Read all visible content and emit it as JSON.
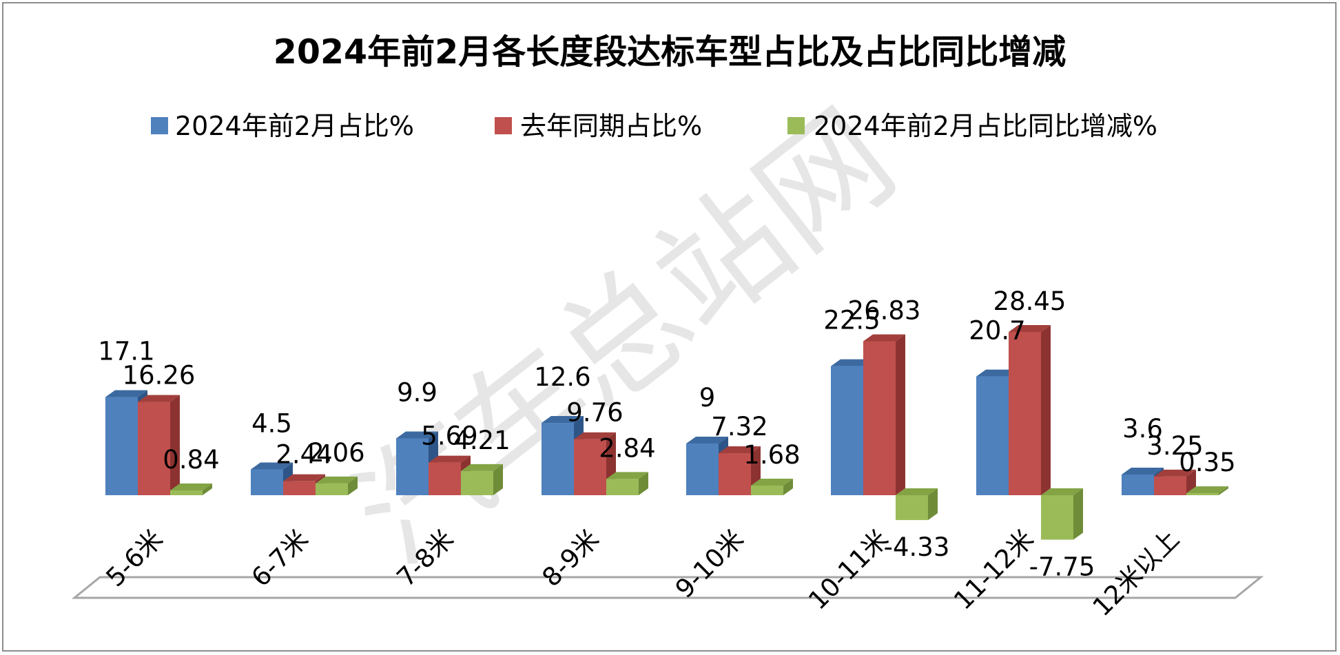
{
  "chart_data": {
    "type": "bar",
    "title": "2024年前2月各长度段达标车型占比及占比同比增减",
    "categories": [
      "5-6米",
      "6-7米",
      "7-8米",
      "8-9米",
      "9-10米",
      "10-11米",
      "11-12米",
      "12米以上"
    ],
    "series": [
      {
        "name": "2024年前2月占比%",
        "values": [
          17.1,
          4.5,
          9.9,
          12.6,
          9,
          22.5,
          20.7,
          3.6
        ]
      },
      {
        "name": "去年同期占比%",
        "values": [
          16.26,
          2.44,
          5.69,
          9.76,
          7.32,
          26.83,
          28.45,
          3.25
        ]
      },
      {
        "name": "2024年前2月占比同比增减%",
        "values": [
          0.84,
          2.06,
          4.21,
          2.84,
          1.68,
          -4.33,
          -7.75,
          0.35
        ]
      }
    ],
    "legend_position": "top",
    "grid": false,
    "style": "3d-clustered-column",
    "colors": {
      "series_front": [
        "#4f81bd",
        "#c0504d",
        "#9bbb59"
      ],
      "series_top": [
        "#3c6aa0",
        "#a23f3c",
        "#83a345"
      ],
      "series_side": [
        "#2d5587",
        "#8c3331",
        "#6f8d38"
      ],
      "floor_line": "#a6a6a6",
      "border": "#8c8c8c"
    }
  },
  "watermark": "汽车总站网"
}
